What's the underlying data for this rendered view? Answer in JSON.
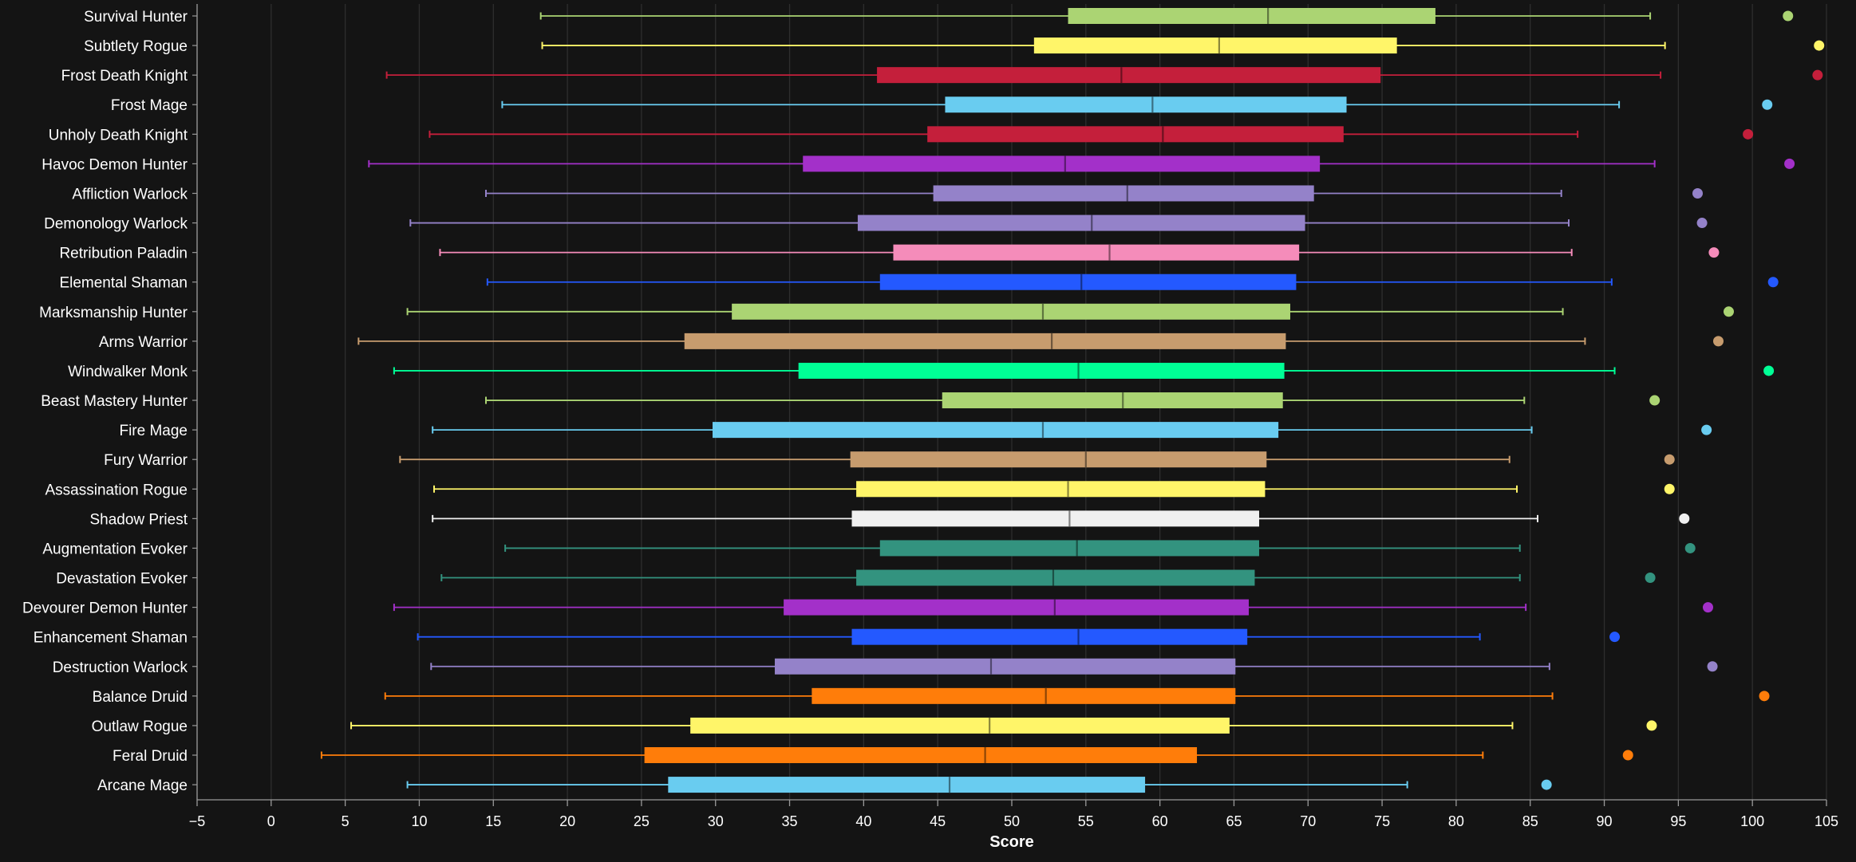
{
  "chart_data": {
    "type": "box",
    "orientation": "horizontal",
    "xlabel": "Score",
    "xlim": [
      -5,
      105
    ],
    "xticks": [
      -5,
      0,
      5,
      10,
      15,
      20,
      25,
      30,
      35,
      40,
      45,
      50,
      55,
      60,
      65,
      70,
      75,
      80,
      85,
      90,
      95,
      100,
      105
    ],
    "grid": true,
    "series": [
      {
        "name": "Survival Hunter",
        "color": "#ABD473",
        "min": 18.2,
        "q1": 53.8,
        "median": 67.3,
        "q3": 78.6,
        "max": 93.1,
        "outlier": 102.4
      },
      {
        "name": "Subtlety Rogue",
        "color": "#FFF569",
        "min": 18.3,
        "q1": 51.5,
        "median": 64.0,
        "q3": 76.0,
        "max": 94.1,
        "outlier": 104.5
      },
      {
        "name": "Frost Death Knight",
        "color": "#C41F3B",
        "min": 7.8,
        "q1": 40.9,
        "median": 57.4,
        "q3": 74.9,
        "max": 93.8,
        "outlier": 104.4
      },
      {
        "name": "Frost Mage",
        "color": "#69CCF0",
        "min": 15.6,
        "q1": 45.5,
        "median": 59.5,
        "q3": 72.6,
        "max": 91.0,
        "outlier": 101.0
      },
      {
        "name": "Unholy Death Knight",
        "color": "#C41F3B",
        "min": 10.7,
        "q1": 44.3,
        "median": 60.2,
        "q3": 72.4,
        "max": 88.2,
        "outlier": 99.7
      },
      {
        "name": "Havoc Demon Hunter",
        "color": "#A330C9",
        "min": 6.6,
        "q1": 35.9,
        "median": 53.6,
        "q3": 70.8,
        "max": 93.4,
        "outlier": 102.5
      },
      {
        "name": "Affliction Warlock",
        "color": "#9482C9",
        "min": 14.5,
        "q1": 44.7,
        "median": 57.8,
        "q3": 70.4,
        "max": 87.1,
        "outlier": 96.3
      },
      {
        "name": "Demonology Warlock",
        "color": "#9482C9",
        "min": 9.4,
        "q1": 39.6,
        "median": 55.4,
        "q3": 69.8,
        "max": 87.6,
        "outlier": 96.6
      },
      {
        "name": "Retribution Paladin",
        "color": "#F58CBA",
        "min": 11.4,
        "q1": 42.0,
        "median": 56.6,
        "q3": 69.4,
        "max": 87.8,
        "outlier": 97.4
      },
      {
        "name": "Elemental Shaman",
        "color": "#2459FF",
        "min": 14.6,
        "q1": 41.1,
        "median": 54.7,
        "q3": 69.2,
        "max": 90.5,
        "outlier": 101.4
      },
      {
        "name": "Marksmanship Hunter",
        "color": "#ABD473",
        "min": 9.2,
        "q1": 31.1,
        "median": 52.1,
        "q3": 68.8,
        "max": 87.2,
        "outlier": 98.4
      },
      {
        "name": "Arms Warrior",
        "color": "#C79C6E",
        "min": 5.9,
        "q1": 27.9,
        "median": 52.7,
        "q3": 68.5,
        "max": 88.7,
        "outlier": 97.7
      },
      {
        "name": "Windwalker Monk",
        "color": "#00FF96",
        "min": 8.3,
        "q1": 35.6,
        "median": 54.5,
        "q3": 68.4,
        "max": 90.7,
        "outlier": 101.1
      },
      {
        "name": "Beast Mastery Hunter",
        "color": "#ABD473",
        "min": 14.5,
        "q1": 45.3,
        "median": 57.5,
        "q3": 68.3,
        "max": 84.6,
        "outlier": 93.4
      },
      {
        "name": "Fire Mage",
        "color": "#69CCF0",
        "min": 10.9,
        "q1": 29.8,
        "median": 52.1,
        "q3": 68.0,
        "max": 85.1,
        "outlier": 96.9
      },
      {
        "name": "Fury Warrior",
        "color": "#C79C6E",
        "min": 8.7,
        "q1": 39.1,
        "median": 55.0,
        "q3": 67.2,
        "max": 83.6,
        "outlier": 94.4
      },
      {
        "name": "Assassination Rogue",
        "color": "#FFF569",
        "min": 11.0,
        "q1": 39.5,
        "median": 53.8,
        "q3": 67.1,
        "max": 84.1,
        "outlier": 94.4
      },
      {
        "name": "Shadow Priest",
        "color": "#F0F0F0",
        "min": 10.9,
        "q1": 39.2,
        "median": 53.9,
        "q3": 66.7,
        "max": 85.5,
        "outlier": 95.4
      },
      {
        "name": "Augmentation Evoker",
        "color": "#33937F",
        "min": 15.8,
        "q1": 41.1,
        "median": 54.4,
        "q3": 66.7,
        "max": 84.3,
        "outlier": 95.8
      },
      {
        "name": "Devastation Evoker",
        "color": "#33937F",
        "min": 11.5,
        "q1": 39.5,
        "median": 52.8,
        "q3": 66.4,
        "max": 84.3,
        "outlier": 93.1
      },
      {
        "name": "Devourer Demon Hunter",
        "color": "#A330C9",
        "min": 8.3,
        "q1": 34.6,
        "median": 52.9,
        "q3": 66.0,
        "max": 84.7,
        "outlier": 97.0
      },
      {
        "name": "Enhancement Shaman",
        "color": "#2459FF",
        "min": 9.9,
        "q1": 39.2,
        "median": 54.5,
        "q3": 65.9,
        "max": 81.6,
        "outlier": 90.7
      },
      {
        "name": "Destruction Warlock",
        "color": "#9482C9",
        "min": 10.8,
        "q1": 34.0,
        "median": 48.6,
        "q3": 65.1,
        "max": 86.3,
        "outlier": 97.3
      },
      {
        "name": "Balance Druid",
        "color": "#FF7D0A",
        "min": 7.7,
        "q1": 36.5,
        "median": 52.3,
        "q3": 65.1,
        "max": 86.5,
        "outlier": 100.8
      },
      {
        "name": "Outlaw Rogue",
        "color": "#FFF569",
        "min": 5.4,
        "q1": 28.3,
        "median": 48.5,
        "q3": 64.7,
        "max": 83.8,
        "outlier": 93.2
      },
      {
        "name": "Feral Druid",
        "color": "#FF7D0A",
        "min": 3.4,
        "q1": 25.2,
        "median": 48.2,
        "q3": 62.5,
        "max": 81.8,
        "outlier": 91.6
      },
      {
        "name": "Arcane Mage",
        "color": "#69CCF0",
        "min": 9.2,
        "q1": 26.8,
        "median": 45.8,
        "q3": 59.0,
        "max": 76.7,
        "outlier": 86.1
      }
    ]
  }
}
